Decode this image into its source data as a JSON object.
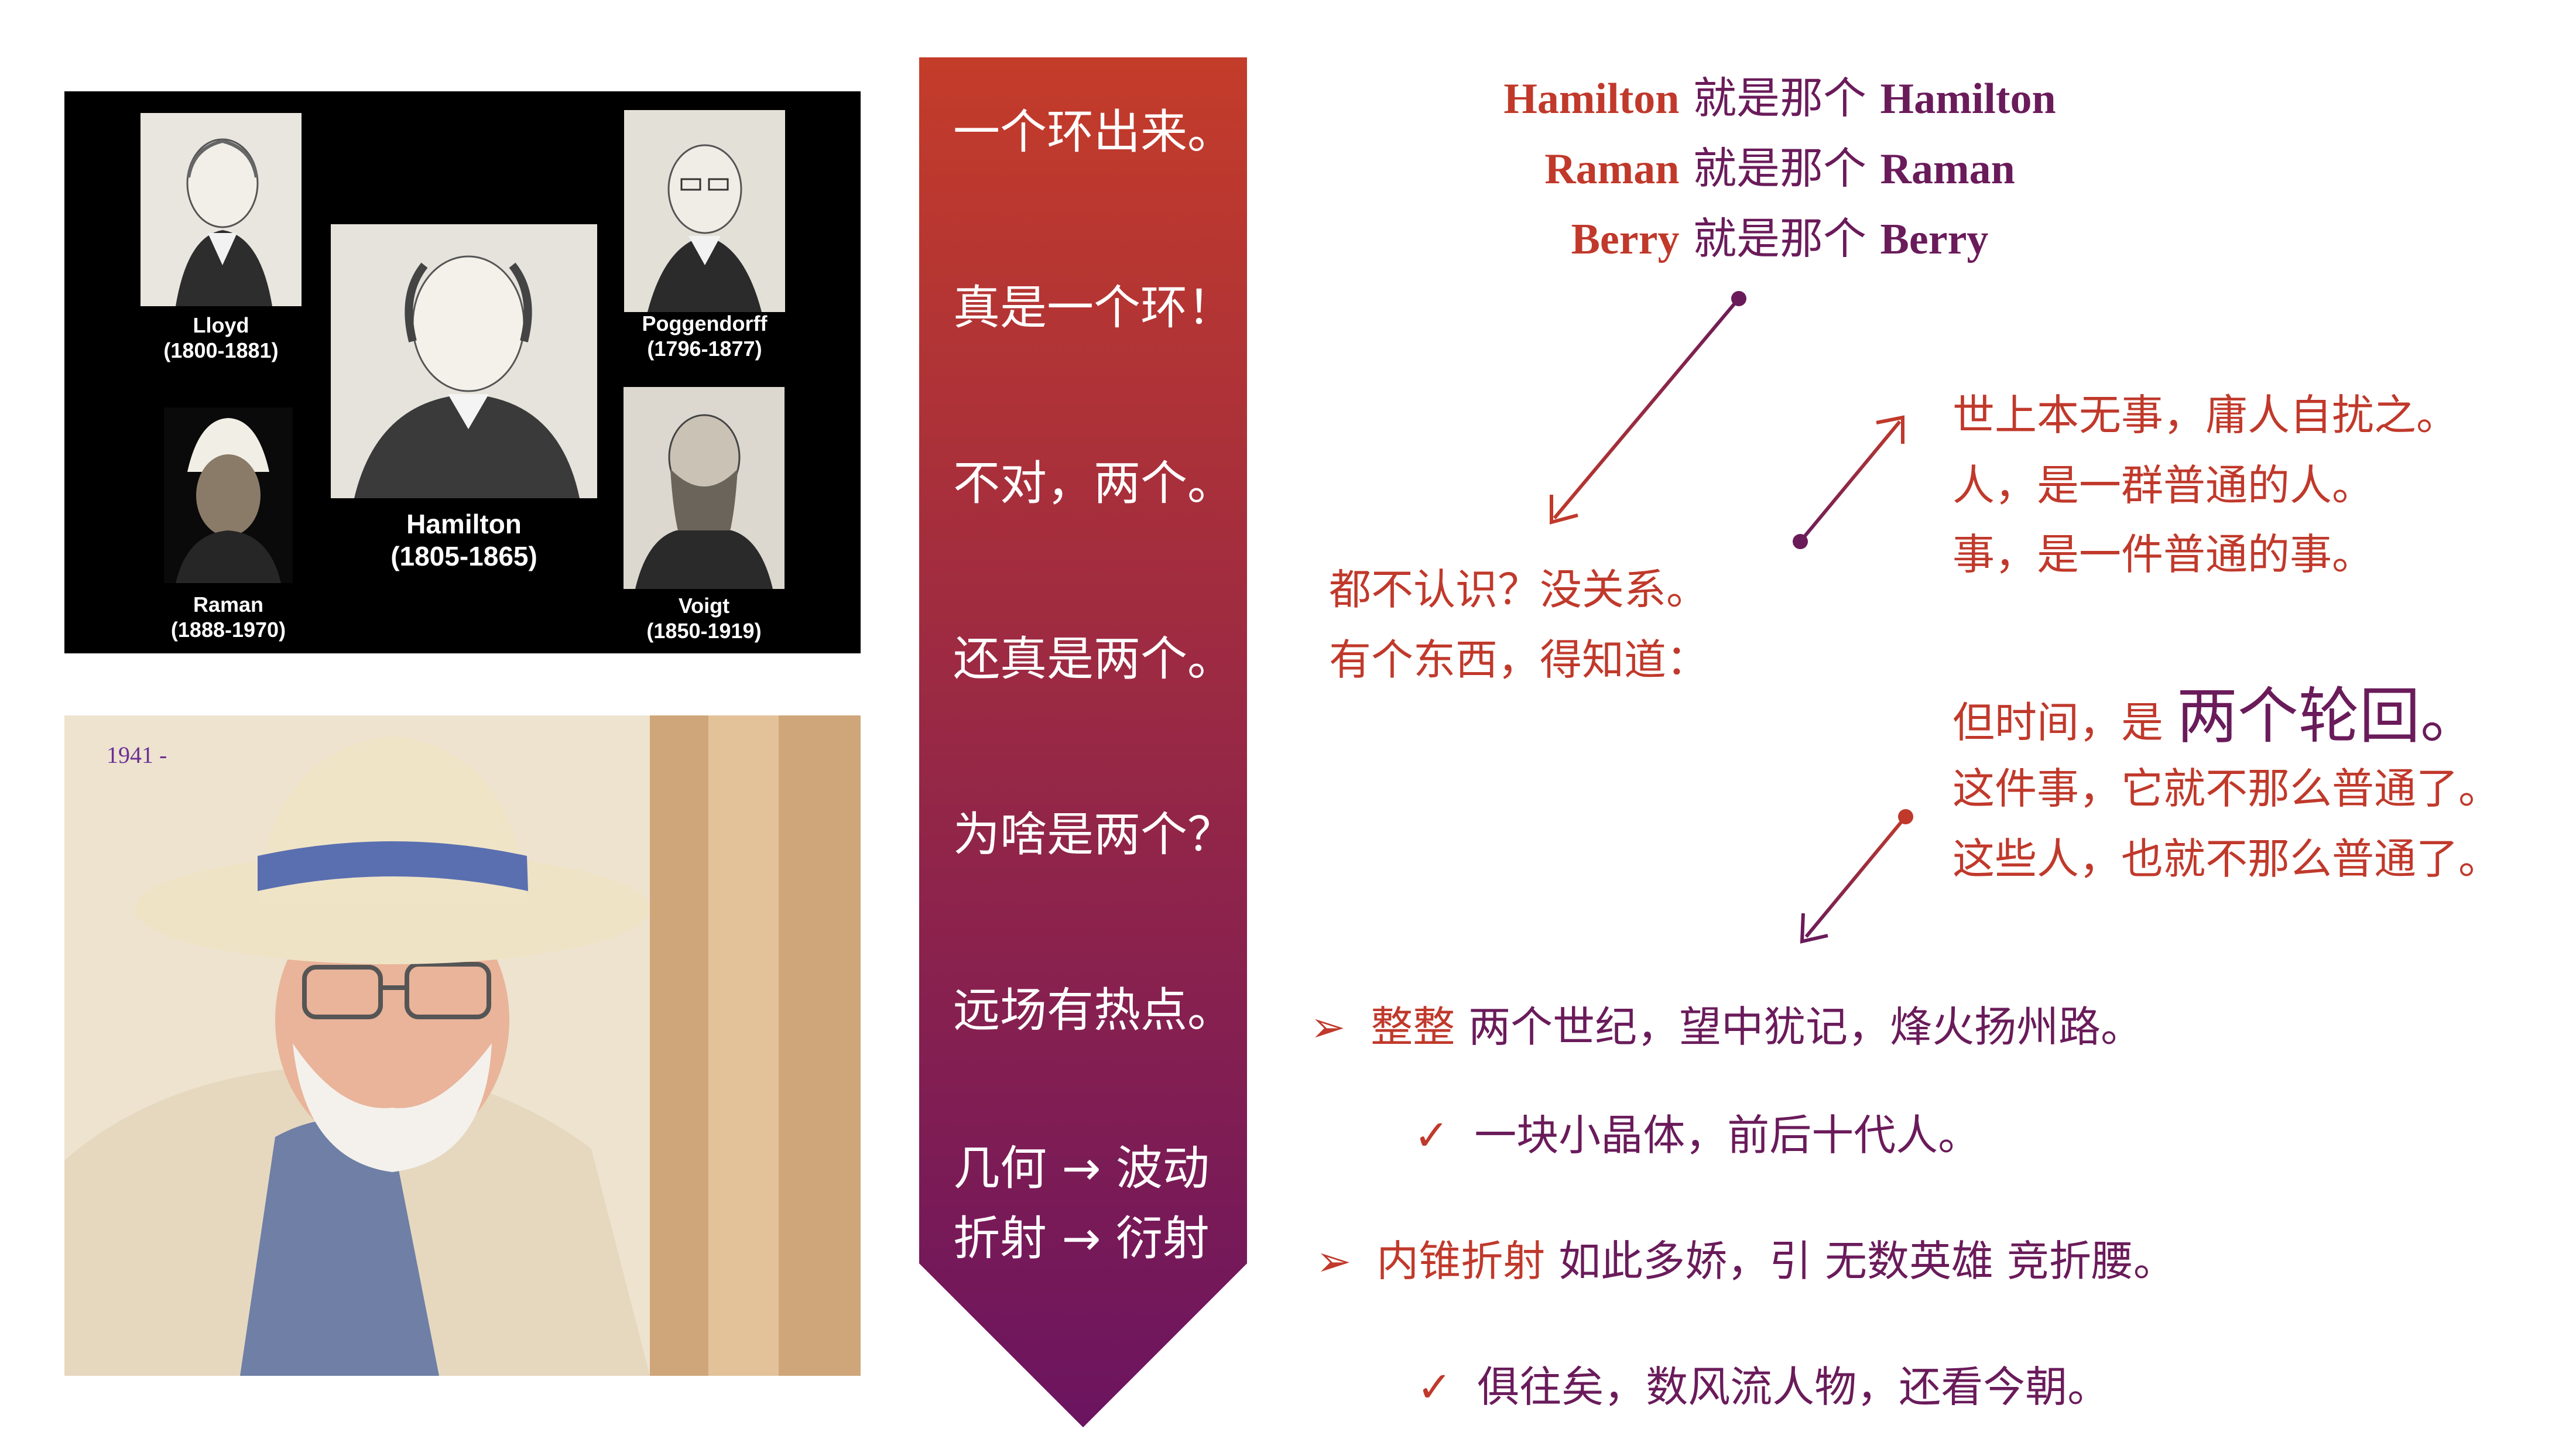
{
  "portraits": {
    "lloyd": {
      "name": "Lloyd",
      "years": "(1800-1881)"
    },
    "poggendorff": {
      "name": "Poggendorff",
      "years": "(1796-1877)"
    },
    "hamilton": {
      "name": "Hamilton",
      "years": "(1805-1865)"
    },
    "raman": {
      "name": "Raman",
      "years": "(1888-1970)"
    },
    "voigt": {
      "name": "Voigt",
      "years": "(1850-1919)"
    }
  },
  "photo": {
    "year": "1941 -"
  },
  "banner": {
    "items": [
      "一个环出来。",
      "真是一个环！",
      "不对，两个。",
      "还真是两个。",
      "为啥是两个？",
      "远场有热点。"
    ],
    "last": {
      "line1": {
        "left": "几何",
        "arrow": "→",
        "right": "波动"
      },
      "line2": {
        "left": "折射",
        "arrow": "→",
        "right": "衍射"
      }
    },
    "colors": {
      "top": "#c43c2a",
      "bottom": "#6b1460"
    }
  },
  "header_lines": [
    {
      "name": "Hamilton",
      "mid": "就是那个",
      "name2": "Hamilton"
    },
    {
      "name": "Raman",
      "mid": "就是那个",
      "name2": "Raman"
    },
    {
      "name": "Berry",
      "mid": "就是那个",
      "name2": "Berry"
    }
  ],
  "left_block": [
    "都不认识？没关系。",
    "有个东西，得知道："
  ],
  "right_block": [
    "世上本无事，庸人自扰之。",
    "人，是一群普通的人。",
    "事，是一件普通的事。"
  ],
  "time_block": {
    "prefix": "但时间，是 ",
    "emph": "两个轮回。",
    "lines": [
      "这件事，它就不那么普通了。",
      "这些人，也就不那么普通了。"
    ]
  },
  "bullets": [
    {
      "icon": "➢",
      "orange": "整整",
      "rest": " 两个世纪，望中犹记，烽火扬州路。"
    },
    {
      "icon": "✓",
      "orange": "",
      "rest": "一块小晶体，前后十代人。"
    },
    {
      "icon": "➢",
      "orange": "内锥折射",
      "rest": " 如此多娇，引 无数英雄 竞折腰。"
    },
    {
      "icon": "✓",
      "orange": "",
      "rest": "俱往矣，数风流人物，还看今朝。"
    }
  ],
  "colors": {
    "accent_orange": "#c0392b",
    "accent_plum": "#6a1b5a"
  }
}
